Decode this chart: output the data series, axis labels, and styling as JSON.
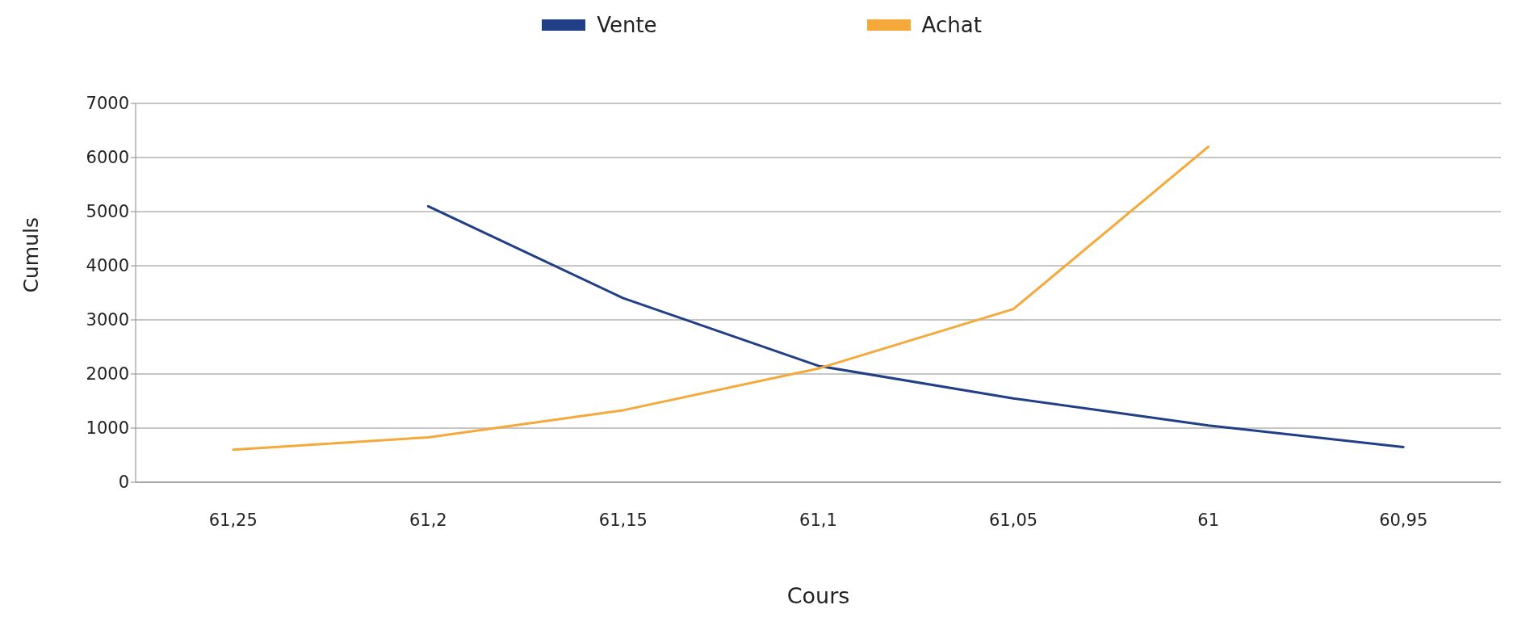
{
  "chart_data": {
    "type": "line",
    "xlabel": "Cours",
    "ylabel": "Cumuls",
    "categories": [
      "61,25",
      "61,2",
      "61,15",
      "61,1",
      "61,05",
      "61",
      "60,95"
    ],
    "series": [
      {
        "name": "Vente",
        "color": "#213f86",
        "values": [
          null,
          5100,
          3400,
          2150,
          1550,
          1050,
          650
        ]
      },
      {
        "name": "Achat",
        "color": "#f5a93a",
        "values": [
          600,
          830,
          1330,
          2100,
          3200,
          6200,
          null
        ]
      }
    ],
    "ylim": [
      0,
      7000
    ],
    "yticks": [
      0,
      1000,
      2000,
      3000,
      4000,
      5000,
      6000,
      7000
    ],
    "grid": "y",
    "legend": "top",
    "marker": "none",
    "line_style": "solid"
  }
}
